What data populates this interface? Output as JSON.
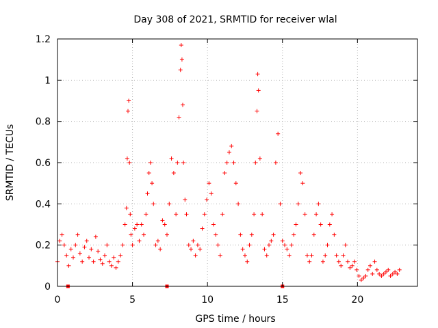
{
  "chart_data": {
    "type": "scatter",
    "title": "Day 308 of 2021, SRMTID for receiver wlal",
    "xlabel": "GPS time / hours",
    "ylabel": "SRMTID / TECUs",
    "xlim": [
      0,
      24
    ],
    "ylim": [
      0,
      1.2
    ],
    "xticks": [
      0,
      5,
      10,
      15,
      20
    ],
    "xtick_labels": [
      "0",
      "5",
      "10",
      "15",
      "20"
    ],
    "yticks": [
      0,
      0.2,
      0.4,
      0.6,
      0.8,
      1.0,
      1.2
    ],
    "ytick_labels": [
      "0",
      "0.2",
      "0.4",
      "0.6",
      "0.8",
      "1",
      "1.2"
    ],
    "grid": true,
    "marker": "plus",
    "color": "#ff0000",
    "series": [
      {
        "name": "SRMTID",
        "x": [
          0.0,
          0.15,
          0.3,
          0.45,
          0.6,
          0.75,
          0.9,
          1.05,
          1.2,
          1.35,
          1.5,
          1.65,
          1.8,
          1.95,
          2.1,
          2.25,
          2.4,
          2.55,
          2.7,
          2.85,
          3.0,
          3.15,
          3.3,
          3.45,
          3.6,
          3.75,
          3.9,
          4.05,
          4.2,
          4.35,
          4.5,
          4.6,
          4.65,
          4.7,
          4.75,
          4.8,
          4.85,
          4.9,
          5.0,
          5.15,
          5.3,
          5.45,
          5.6,
          5.75,
          5.9,
          6.0,
          6.1,
          6.2,
          6.3,
          6.4,
          6.55,
          6.7,
          6.85,
          7.0,
          7.15,
          7.3,
          7.45,
          7.6,
          7.75,
          7.9,
          8.0,
          8.1,
          8.2,
          8.25,
          8.3,
          8.35,
          8.4,
          8.5,
          8.6,
          8.75,
          8.9,
          9.05,
          9.2,
          9.35,
          9.5,
          9.65,
          9.8,
          9.95,
          10.1,
          10.25,
          10.4,
          10.55,
          10.7,
          10.85,
          11.0,
          11.15,
          11.3,
          11.45,
          11.6,
          11.75,
          11.9,
          12.05,
          12.2,
          12.35,
          12.5,
          12.65,
          12.8,
          12.95,
          13.1,
          13.2,
          13.3,
          13.35,
          13.4,
          13.5,
          13.65,
          13.8,
          13.95,
          14.1,
          14.25,
          14.4,
          14.55,
          14.7,
          14.85,
          15.0,
          15.15,
          15.3,
          15.45,
          15.6,
          15.75,
          15.9,
          16.05,
          16.2,
          16.35,
          16.5,
          16.65,
          16.8,
          16.95,
          17.1,
          17.25,
          17.4,
          17.55,
          17.7,
          17.85,
          18.0,
          18.15,
          18.3,
          18.45,
          18.6,
          18.75,
          18.9,
          19.05,
          19.2,
          19.35,
          19.5,
          19.65,
          19.8,
          19.95,
          20.1,
          20.25,
          20.4,
          20.55,
          20.7,
          20.85,
          21.0,
          21.15,
          21.3,
          21.45,
          21.6,
          21.75,
          21.9,
          22.05,
          22.2,
          22.35,
          22.5,
          22.65,
          22.8
        ],
        "y": [
          0.12,
          0.22,
          0.25,
          0.2,
          0.15,
          0.1,
          0.18,
          0.14,
          0.2,
          0.25,
          0.16,
          0.12,
          0.19,
          0.22,
          0.14,
          0.18,
          0.12,
          0.24,
          0.17,
          0.13,
          0.11,
          0.15,
          0.2,
          0.12,
          0.1,
          0.14,
          0.09,
          0.12,
          0.15,
          0.2,
          0.3,
          0.38,
          0.62,
          0.85,
          0.9,
          0.6,
          0.35,
          0.25,
          0.2,
          0.28,
          0.3,
          0.22,
          0.3,
          0.25,
          0.35,
          0.45,
          0.55,
          0.6,
          0.5,
          0.4,
          0.2,
          0.22,
          0.18,
          0.32,
          0.3,
          0.25,
          0.4,
          0.62,
          0.55,
          0.35,
          0.6,
          0.82,
          1.05,
          1.17,
          1.1,
          0.88,
          0.6,
          0.42,
          0.35,
          0.2,
          0.18,
          0.22,
          0.15,
          0.2,
          0.18,
          0.28,
          0.35,
          0.42,
          0.5,
          0.45,
          0.3,
          0.25,
          0.2,
          0.15,
          0.35,
          0.55,
          0.6,
          0.65,
          0.68,
          0.6,
          0.5,
          0.4,
          0.25,
          0.18,
          0.15,
          0.12,
          0.2,
          0.25,
          0.35,
          0.6,
          0.85,
          1.03,
          0.95,
          0.62,
          0.35,
          0.18,
          0.15,
          0.2,
          0.22,
          0.25,
          0.6,
          0.74,
          0.4,
          0.22,
          0.2,
          0.18,
          0.15,
          0.2,
          0.25,
          0.3,
          0.4,
          0.55,
          0.5,
          0.35,
          0.15,
          0.12,
          0.15,
          0.25,
          0.35,
          0.4,
          0.3,
          0.12,
          0.15,
          0.2,
          0.3,
          0.35,
          0.25,
          0.15,
          0.12,
          0.1,
          0.15,
          0.2,
          0.12,
          0.09,
          0.1,
          0.12,
          0.08,
          0.05,
          0.03,
          0.04,
          0.05,
          0.08,
          0.1,
          0.06,
          0.12,
          0.08,
          0.06,
          0.05,
          0.06,
          0.07,
          0.08,
          0.05,
          0.06,
          0.07,
          0.06,
          0.08
        ]
      }
    ],
    "axis_markers_x": [
      0.7,
      7.3,
      15.0
    ]
  }
}
